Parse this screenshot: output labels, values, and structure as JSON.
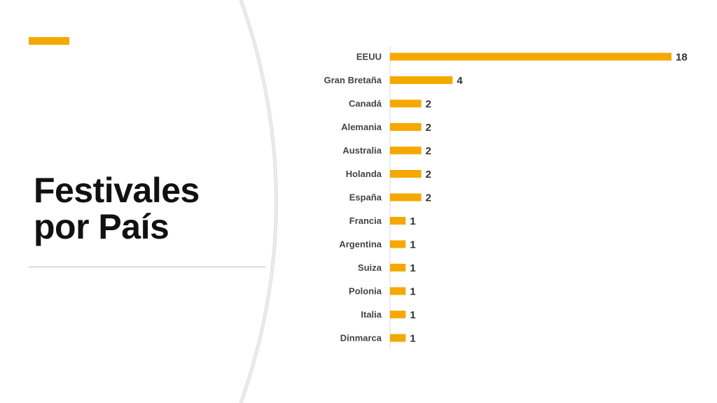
{
  "slide": {
    "title_line1": "Festivales",
    "title_line2": "por País",
    "accent_color": "#F5A800"
  },
  "chart_data": {
    "type": "bar",
    "orientation": "horizontal",
    "title": "",
    "xlabel": "",
    "ylabel": "",
    "categories": [
      "EEUU",
      "Gran Bretaña",
      "Canadá",
      "Alemania",
      "Australia",
      "Holanda",
      "España",
      "Francia",
      "Argentina",
      "Suiza",
      "Polonia",
      "Italia",
      "Dinmarca"
    ],
    "values": [
      18,
      4,
      2,
      2,
      2,
      2,
      2,
      1,
      1,
      1,
      1,
      1,
      1
    ],
    "xlim": [
      0,
      18
    ],
    "grid": false,
    "legend": "none",
    "data_labels": true,
    "bar_color": "#F5A800"
  }
}
